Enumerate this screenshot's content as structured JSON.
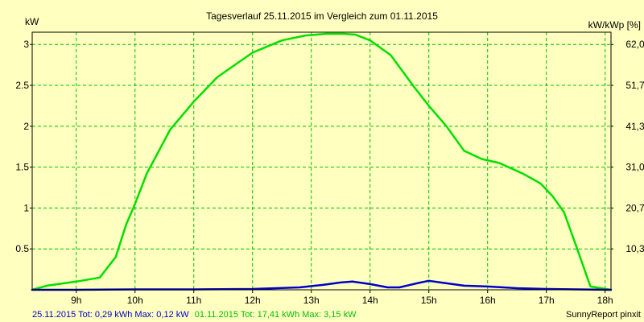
{
  "chart_data": {
    "type": "line",
    "title": "Tagesverlauf 25.11.2015 im Vergleich zum 01.11.2015",
    "ylabel_left": "kW",
    "ylabel_right": "kW/kWp [%]",
    "xlim": [
      8.25,
      18.1
    ],
    "ylim": [
      0,
      3.15
    ],
    "grid": true,
    "x_ticks": [
      {
        "value": 9,
        "label": "9h"
      },
      {
        "value": 10,
        "label": "10h"
      },
      {
        "value": 11,
        "label": "11h"
      },
      {
        "value": 12,
        "label": "12h"
      },
      {
        "value": 13,
        "label": "13h"
      },
      {
        "value": 14,
        "label": "14h"
      },
      {
        "value": 15,
        "label": "15h"
      },
      {
        "value": 16,
        "label": "16h"
      },
      {
        "value": 17,
        "label": "17h"
      },
      {
        "value": 18,
        "label": "18h"
      }
    ],
    "y_ticks_left": [
      {
        "value": 0.5,
        "label": "0.5"
      },
      {
        "value": 1,
        "label": "1"
      },
      {
        "value": 1.5,
        "label": "1.5"
      },
      {
        "value": 2,
        "label": "2"
      },
      {
        "value": 2.5,
        "label": "2.5"
      },
      {
        "value": 3,
        "label": "3"
      }
    ],
    "y_ticks_right": [
      {
        "value": 0.5,
        "label": "10,3"
      },
      {
        "value": 1,
        "label": "20,7"
      },
      {
        "value": 1.5,
        "label": "31,0"
      },
      {
        "value": 2,
        "label": "41,3"
      },
      {
        "value": 2.5,
        "label": "51,7"
      },
      {
        "value": 3,
        "label": "62,0"
      }
    ],
    "series": [
      {
        "color": "#00e000",
        "x": [
          8.25,
          8.5,
          9.0,
          9.4,
          9.67,
          9.85,
          10.0,
          10.2,
          10.6,
          11.0,
          11.4,
          12.0,
          12.5,
          12.9,
          13.25,
          13.55,
          13.75,
          14.0,
          14.35,
          14.75,
          15.0,
          15.3,
          15.6,
          15.9,
          16.2,
          16.6,
          16.9,
          17.1,
          17.3,
          17.5,
          17.75,
          18.1
        ],
        "y": [
          0.0,
          0.05,
          0.1,
          0.15,
          0.4,
          0.8,
          1.05,
          1.42,
          1.96,
          2.3,
          2.6,
          2.9,
          3.05,
          3.11,
          3.13,
          3.13,
          3.12,
          3.05,
          2.87,
          2.48,
          2.25,
          2.0,
          1.7,
          1.6,
          1.55,
          1.42,
          1.3,
          1.15,
          0.95,
          0.55,
          0.04,
          0.0
        ]
      },
      {
        "color": "#0000c8",
        "x": [
          8.25,
          9.0,
          10.0,
          11.0,
          12.0,
          12.8,
          13.2,
          13.5,
          13.7,
          14.0,
          14.3,
          14.5,
          14.8,
          15.0,
          15.2,
          15.6,
          16.0,
          16.5,
          17.0,
          18.1
        ],
        "y": [
          0.0,
          0.0,
          0.005,
          0.005,
          0.01,
          0.03,
          0.06,
          0.09,
          0.1,
          0.07,
          0.03,
          0.03,
          0.08,
          0.11,
          0.09,
          0.05,
          0.04,
          0.02,
          0.01,
          0.0
        ]
      }
    ]
  },
  "footer": {
    "left_series": "25.11.2015 Tot: 0,29 kWh Max: 0,12 kW",
    "right_series": "01.11.2015 Tot: 17,41 kWh Max: 3,15 kW",
    "credit": "SunnyReport pinxit"
  },
  "colors": {
    "background": "#ffffc0",
    "grid": "#00c000",
    "footer_blue": "#0000c8",
    "footer_green": "#00c000"
  }
}
